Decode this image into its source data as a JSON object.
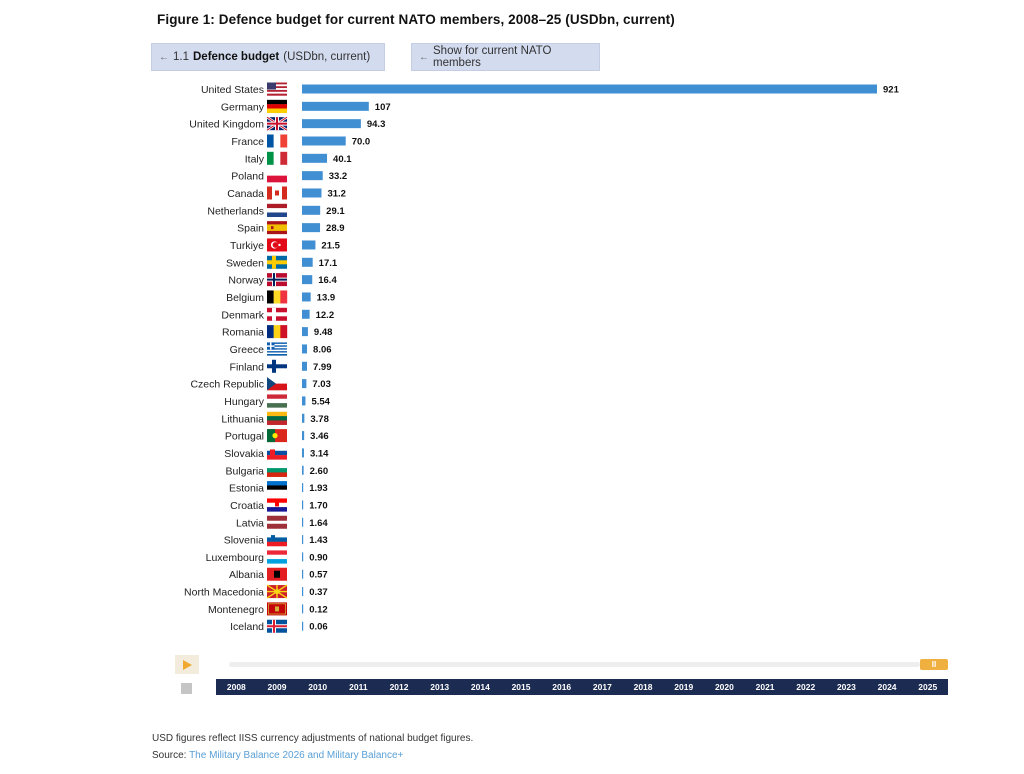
{
  "figure_title": "Figure 1: Defence budget for current NATO members, 2008–25 (USDbn, current)",
  "tab1": {
    "arrow": "←",
    "number": "1.1",
    "label": "Defence budget",
    "unit": "(USDbn, current)"
  },
  "tab2": {
    "arrow": "←",
    "label": "Show for current NATO members"
  },
  "chart_data": {
    "type": "bar",
    "orientation": "horizontal",
    "title": "Defence budget (USDbn, current)",
    "year": "2025",
    "categories": [
      "United States",
      "Germany",
      "United Kingdom",
      "France",
      "Italy",
      "Poland",
      "Canada",
      "Netherlands",
      "Spain",
      "Turkiye",
      "Sweden",
      "Norway",
      "Belgium",
      "Denmark",
      "Romania",
      "Greece",
      "Finland",
      "Czech Republic",
      "Hungary",
      "Lithuania",
      "Portugal",
      "Slovakia",
      "Bulgaria",
      "Estonia",
      "Croatia",
      "Latvia",
      "Slovenia",
      "Luxembourg",
      "Albania",
      "North Macedonia",
      "Montenegro",
      "Iceland"
    ],
    "values": [
      921,
      107,
      94.3,
      70.0,
      40.1,
      33.2,
      31.2,
      29.1,
      28.9,
      21.5,
      17.1,
      16.4,
      13.9,
      12.2,
      9.48,
      8.06,
      7.99,
      7.03,
      5.54,
      3.78,
      3.46,
      3.14,
      2.6,
      1.93,
      1.7,
      1.64,
      1.43,
      0.9,
      0.57,
      0.37,
      0.12,
      0.06
    ],
    "labels": [
      "921",
      "107",
      "94.3",
      "70.0",
      "40.1",
      "33.2",
      "31.2",
      "29.1",
      "28.9",
      "21.5",
      "17.1",
      "16.4",
      "13.9",
      "12.2",
      "9.48",
      "8.06",
      "7.99",
      "7.03",
      "5.54",
      "3.78",
      "3.46",
      "3.14",
      "2.60",
      "1.93",
      "1.70",
      "1.64",
      "1.43",
      "0.90",
      "0.57",
      "0.37",
      "0.12",
      "0.06"
    ],
    "xlim": [
      0,
      921
    ],
    "bar_color": "#3f8fd2"
  },
  "timeline": {
    "years": [
      "2008",
      "2009",
      "2010",
      "2011",
      "2012",
      "2013",
      "2014",
      "2015",
      "2016",
      "2017",
      "2018",
      "2019",
      "2020",
      "2021",
      "2022",
      "2023",
      "2024",
      "2025"
    ],
    "selected": "2025",
    "pause_symbol": "II"
  },
  "footnote": "USD figures reflect IISS currency adjustments of national budget figures.",
  "source_label": "Source:",
  "source_link": "The Military Balance 2026 and Military Balance+",
  "colors": {
    "accent": "#f0b040",
    "timeline_bg": "#1c2b52",
    "tab_bg": "#d3dbef",
    "link": "#5aa0d6"
  }
}
